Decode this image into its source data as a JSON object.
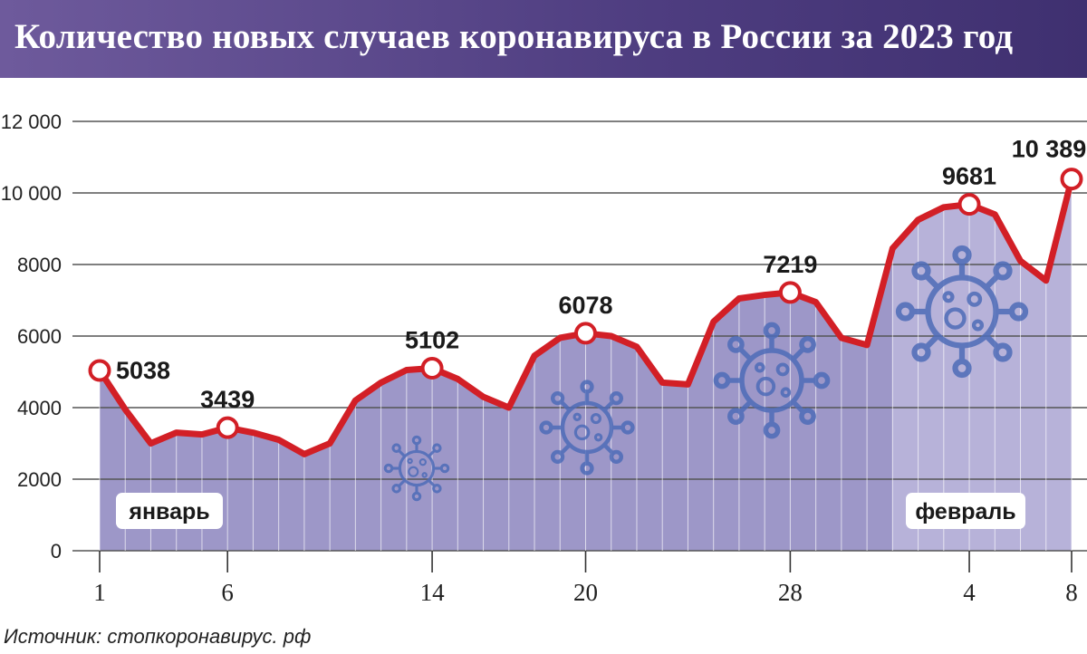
{
  "header": {
    "title": "Количество новых случаев коронавируса в России за 2023 год"
  },
  "source": "Источник: стопкоронавирус. рф",
  "months": [
    "январь",
    "февраль"
  ],
  "chart_data": {
    "type": "area",
    "title": "Количество новых случаев коронавируса в России за 2023 год",
    "xlabel": "",
    "ylabel": "",
    "ylim": [
      0,
      12000
    ],
    "yticks": [
      0,
      2000,
      4000,
      6000,
      8000,
      10000,
      12000
    ],
    "ytick_labels": [
      "0",
      "2000",
      "4000",
      "6000",
      "8000",
      "10 000",
      "12 000"
    ],
    "x_tick_labels": [
      {
        "index": 0,
        "label": "1"
      },
      {
        "index": 5,
        "label": "6"
      },
      {
        "index": 13,
        "label": "14"
      },
      {
        "index": 19,
        "label": "20"
      },
      {
        "index": 27,
        "label": "28"
      },
      {
        "index": 34,
        "label": "4"
      },
      {
        "index": 38,
        "label": "8"
      }
    ],
    "x": [
      "1 янв",
      "2 янв",
      "3 янв",
      "4 янв",
      "5 янв",
      "6 янв",
      "7 янв",
      "8 янв",
      "9 янв",
      "10 янв",
      "11 янв",
      "12 янв",
      "13 янв",
      "14 янв",
      "15 янв",
      "16 янв",
      "17 янв",
      "18 янв",
      "19 янв",
      "20 янв",
      "21 янв",
      "22 янв",
      "23 янв",
      "24 янв",
      "25 янв",
      "26 янв",
      "27 янв",
      "28 янв",
      "29 янв",
      "30 янв",
      "31 янв",
      "1 фев",
      "2 фев",
      "3 фев",
      "4 фев",
      "5 фев",
      "6 фев",
      "7 фев",
      "8 фев"
    ],
    "values": [
      5038,
      3950,
      3000,
      3300,
      3250,
      3439,
      3300,
      3100,
      2700,
      3000,
      4200,
      4700,
      5050,
      5102,
      4800,
      4300,
      4000,
      5450,
      5950,
      6078,
      6000,
      5700,
      4700,
      4650,
      6400,
      7050,
      7150,
      7219,
      6950,
      5950,
      5750,
      8450,
      9250,
      9600,
      9681,
      9400,
      8100,
      7550,
      10389
    ],
    "labeled_points": [
      {
        "index": 0,
        "label": "5038"
      },
      {
        "index": 5,
        "label": "3439"
      },
      {
        "index": 13,
        "label": "5102"
      },
      {
        "index": 19,
        "label": "6078"
      },
      {
        "index": 27,
        "label": "7219"
      },
      {
        "index": 34,
        "label": "9681"
      },
      {
        "index": 38,
        "label": "10 389"
      }
    ],
    "month_split_index": 31,
    "grid": true,
    "colors": {
      "line": "#d21f26",
      "fill_jan": "#9d97c8",
      "fill_feb": "#b7b2d9",
      "virus": "#4e6cb8",
      "marker_fill": "#ffffff"
    }
  }
}
